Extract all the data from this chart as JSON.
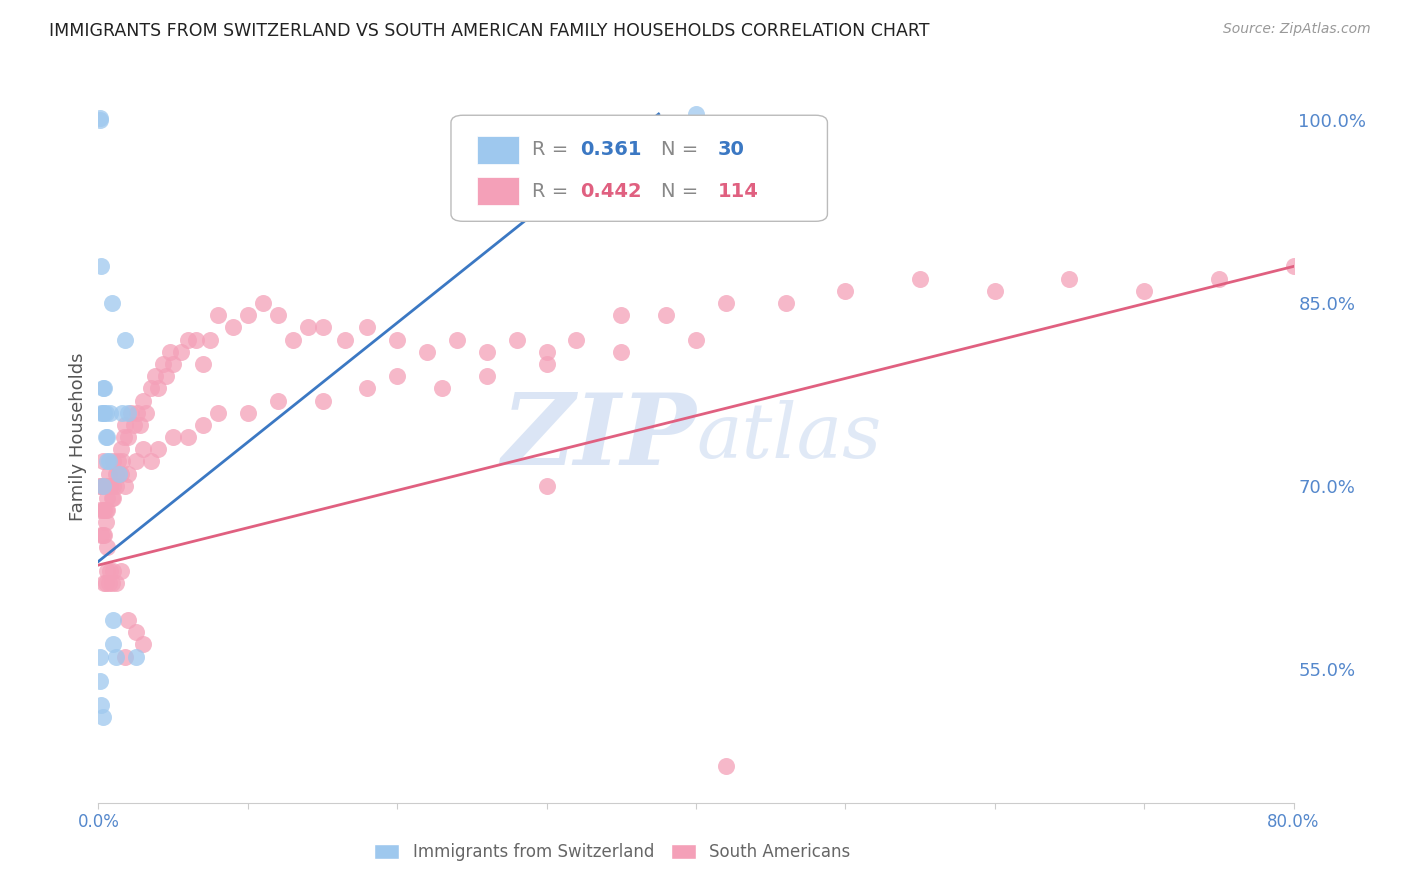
{
  "title": "IMMIGRANTS FROM SWITZERLAND VS SOUTH AMERICAN FAMILY HOUSEHOLDS CORRELATION CHART",
  "source": "Source: ZipAtlas.com",
  "ylabel": "Family Households",
  "y_tick_labels_right": [
    "55.0%",
    "70.0%",
    "85.0%",
    "100.0%"
  ],
  "y_tick_positions": [
    0.55,
    0.7,
    0.85,
    1.0
  ],
  "xlim": [
    0.0,
    0.8
  ],
  "ylim": [
    0.44,
    1.04
  ],
  "background_color": "#ffffff",
  "grid_color": "#d8d8d8",
  "right_axis_color": "#5588cc",
  "scatter_blue_color": "#9EC8EE",
  "scatter_pink_color": "#F4A0B8",
  "line_blue_color": "#3B78C3",
  "line_pink_color": "#E06080",
  "legend_color1": "#9EC8EE",
  "legend_color2": "#F4A0B8",
  "watermark_zip": "ZIP",
  "watermark_atlas": "atlas",
  "blue_line_x0": 0.0,
  "blue_line_x1": 0.375,
  "blue_line_y0": 0.638,
  "blue_line_y1": 1.005,
  "pink_line_x0": 0.0,
  "pink_line_x1": 0.8,
  "pink_line_y0": 0.635,
  "pink_line_y1": 0.88,
  "blue_x": [
    0.001,
    0.001,
    0.002,
    0.002,
    0.003,
    0.003,
    0.003,
    0.004,
    0.004,
    0.005,
    0.005,
    0.006,
    0.006,
    0.007,
    0.008,
    0.009,
    0.01,
    0.01,
    0.012,
    0.014,
    0.016,
    0.018,
    0.02,
    0.025,
    0.33,
    0.4,
    0.001,
    0.001,
    0.002,
    0.003
  ],
  "blue_y": [
    1.0,
    1.002,
    0.88,
    0.76,
    0.78,
    0.76,
    0.7,
    0.78,
    0.76,
    0.76,
    0.74,
    0.74,
    0.72,
    0.72,
    0.76,
    0.85,
    0.59,
    0.57,
    0.56,
    0.71,
    0.76,
    0.82,
    0.76,
    0.56,
    0.99,
    1.005,
    0.56,
    0.54,
    0.52,
    0.51
  ],
  "pink_x": [
    0.001,
    0.001,
    0.002,
    0.002,
    0.003,
    0.003,
    0.004,
    0.004,
    0.005,
    0.005,
    0.006,
    0.006,
    0.007,
    0.008,
    0.009,
    0.01,
    0.01,
    0.012,
    0.013,
    0.014,
    0.015,
    0.016,
    0.017,
    0.018,
    0.02,
    0.022,
    0.024,
    0.026,
    0.028,
    0.03,
    0.032,
    0.035,
    0.038,
    0.04,
    0.043,
    0.045,
    0.048,
    0.05,
    0.055,
    0.06,
    0.065,
    0.07,
    0.075,
    0.08,
    0.09,
    0.1,
    0.11,
    0.12,
    0.13,
    0.14,
    0.15,
    0.165,
    0.18,
    0.2,
    0.22,
    0.24,
    0.26,
    0.28,
    0.3,
    0.32,
    0.35,
    0.38,
    0.42,
    0.46,
    0.5,
    0.55,
    0.6,
    0.65,
    0.7,
    0.75,
    0.8,
    0.003,
    0.004,
    0.005,
    0.006,
    0.008,
    0.01,
    0.012,
    0.015,
    0.018,
    0.02,
    0.025,
    0.03,
    0.035,
    0.04,
    0.05,
    0.06,
    0.07,
    0.08,
    0.1,
    0.12,
    0.15,
    0.18,
    0.2,
    0.23,
    0.26,
    0.3,
    0.35,
    0.4,
    0.3,
    0.004,
    0.005,
    0.006,
    0.007,
    0.008,
    0.009,
    0.01,
    0.012,
    0.015,
    0.018,
    0.02,
    0.025,
    0.03,
    0.42
  ],
  "pink_y": [
    0.7,
    0.68,
    0.7,
    0.66,
    0.68,
    0.72,
    0.7,
    0.66,
    0.68,
    0.7,
    0.68,
    0.65,
    0.71,
    0.7,
    0.69,
    0.72,
    0.7,
    0.71,
    0.72,
    0.71,
    0.73,
    0.72,
    0.74,
    0.75,
    0.74,
    0.76,
    0.75,
    0.76,
    0.75,
    0.77,
    0.76,
    0.78,
    0.79,
    0.78,
    0.8,
    0.79,
    0.81,
    0.8,
    0.81,
    0.82,
    0.82,
    0.8,
    0.82,
    0.84,
    0.83,
    0.84,
    0.85,
    0.84,
    0.82,
    0.83,
    0.83,
    0.82,
    0.83,
    0.82,
    0.81,
    0.82,
    0.81,
    0.82,
    0.81,
    0.82,
    0.84,
    0.84,
    0.85,
    0.85,
    0.86,
    0.87,
    0.86,
    0.87,
    0.86,
    0.87,
    0.88,
    0.66,
    0.68,
    0.67,
    0.69,
    0.7,
    0.69,
    0.7,
    0.71,
    0.7,
    0.71,
    0.72,
    0.73,
    0.72,
    0.73,
    0.74,
    0.74,
    0.75,
    0.76,
    0.76,
    0.77,
    0.77,
    0.78,
    0.79,
    0.78,
    0.79,
    0.8,
    0.81,
    0.82,
    0.7,
    0.62,
    0.62,
    0.63,
    0.62,
    0.63,
    0.62,
    0.63,
    0.62,
    0.63,
    0.56,
    0.59,
    0.58,
    0.57,
    0.47
  ]
}
